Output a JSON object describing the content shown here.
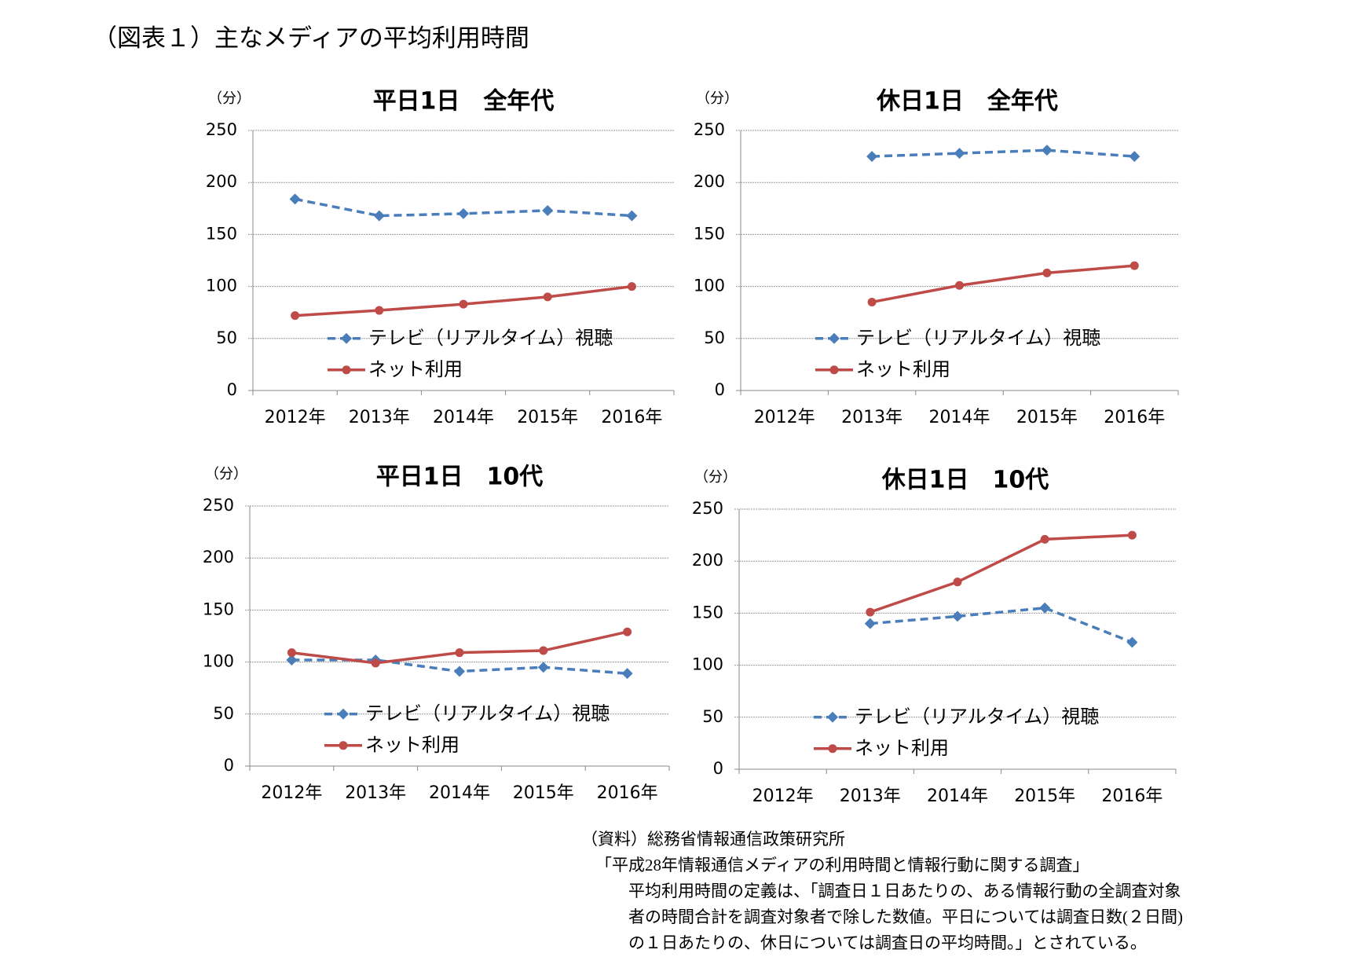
{
  "title": "（図表１）主なメディアの平均利用時間",
  "source": [
    "（資料）総務省情報通信政策研究所",
    "「平成28年情報通信メディアの利用時間と情報行動に関する調査」",
    "平均利用時間の定義は、「調査日１日あたりの、ある情報行動の全調査対象",
    "者の時間合計を調査対象者で除した数値。平日については調査日数(２日間)",
    "の１日あたりの、休日については調査日の平均時間。」とされている。"
  ],
  "chart_data": [
    {
      "type": "line",
      "title": "平日1日　全年代",
      "y_label": "（分）",
      "categories": [
        "2012年",
        "2013年",
        "2014年",
        "2015年",
        "2016年"
      ],
      "ylim": [
        0,
        250
      ],
      "yticks": [
        0,
        50,
        100,
        150,
        200,
        250
      ],
      "grid": true,
      "legend": "lower left",
      "series": [
        {
          "name": "テレビ（リアルタイム）視聴",
          "color": "#4a7ebb",
          "dashed": true,
          "marker": "diamond",
          "values": [
            184,
            168,
            170,
            173,
            168
          ]
        },
        {
          "name": "ネット利用",
          "color": "#be4b48",
          "dashed": false,
          "marker": "circle",
          "values": [
            72,
            77,
            83,
            90,
            100
          ]
        }
      ]
    },
    {
      "type": "line",
      "title": "休日1日　全年代",
      "y_label": "（分）",
      "categories": [
        "2012年",
        "2013年",
        "2014年",
        "2015年",
        "2016年"
      ],
      "ylim": [
        0,
        250
      ],
      "yticks": [
        0,
        50,
        100,
        150,
        200,
        250
      ],
      "grid": true,
      "legend": "lower left",
      "series": [
        {
          "name": "テレビ（リアルタイム）視聴",
          "color": "#4a7ebb",
          "dashed": true,
          "marker": "diamond",
          "values": [
            null,
            225,
            228,
            231,
            225
          ]
        },
        {
          "name": "ネット利用",
          "color": "#be4b48",
          "dashed": false,
          "marker": "circle",
          "values": [
            null,
            85,
            101,
            113,
            120
          ]
        }
      ]
    },
    {
      "type": "line",
      "title": "平日1日　10代",
      "y_label": "（分）",
      "categories": [
        "2012年",
        "2013年",
        "2014年",
        "2015年",
        "2016年"
      ],
      "ylim": [
        0,
        250
      ],
      "yticks": [
        0,
        50,
        100,
        150,
        200,
        250
      ],
      "grid": true,
      "legend": "lower left",
      "series": [
        {
          "name": "テレビ（リアルタイム）視聴",
          "color": "#4a7ebb",
          "dashed": true,
          "marker": "diamond",
          "values": [
            102,
            102,
            91,
            95,
            89
          ]
        },
        {
          "name": "ネット利用",
          "color": "#be4b48",
          "dashed": false,
          "marker": "circle",
          "values": [
            109,
            99,
            109,
            111,
            129
          ]
        }
      ]
    },
    {
      "type": "line",
      "title": "休日1日　10代",
      "y_label": "（分）",
      "categories": [
        "2012年",
        "2013年",
        "2014年",
        "2015年",
        "2016年"
      ],
      "ylim": [
        0,
        250
      ],
      "yticks": [
        0,
        50,
        100,
        150,
        200,
        250
      ],
      "grid": true,
      "legend": "lower left",
      "series": [
        {
          "name": "テレビ（リアルタイム）視聴",
          "color": "#4a7ebb",
          "dashed": true,
          "marker": "diamond",
          "values": [
            null,
            140,
            147,
            155,
            122
          ]
        },
        {
          "name": "ネット利用",
          "color": "#be4b48",
          "dashed": false,
          "marker": "circle",
          "values": [
            null,
            151,
            180,
            221,
            225
          ]
        }
      ]
    }
  ]
}
